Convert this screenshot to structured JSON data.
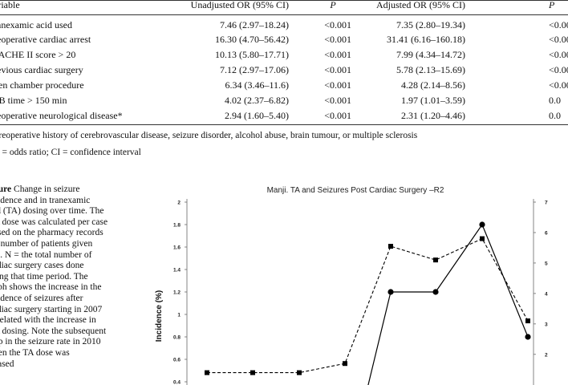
{
  "table": {
    "headers": {
      "variable": "ariable",
      "unadjusted": "Unadjusted OR (95% CI)",
      "p1": "P",
      "adjusted": "Adjusted OR (95% CI)",
      "p2": "P"
    },
    "rows": [
      {
        "variable": "ranexamic acid used",
        "unadjusted": "7.46 (2.97–18.24)",
        "p1": "<0.001",
        "adjusted": "7.35 (2.80–19.34)",
        "p2": "<0.00"
      },
      {
        "variable": "reoperative cardiac arrest",
        "unadjusted": "16.30 (4.70–56.42)",
        "p1": "<0.001",
        "adjusted": "31.41 (6.16–160.18)",
        "p2": "<0.00"
      },
      {
        "variable": "PACHE II score > 20",
        "unadjusted": "10.13 (5.80–17.71)",
        "p1": "<0.001",
        "adjusted": "7.99 (4.34–14.72)",
        "p2": "<0.00"
      },
      {
        "variable": "revious cardiac surgery",
        "unadjusted": "7.12 (2.97–17.06)",
        "p1": "<0.001",
        "adjusted": "5.78 (2.13–15.69)",
        "p2": "<0.00"
      },
      {
        "variable": "pen chamber procedure",
        "unadjusted": "6.34 (3.46–11.6)",
        "p1": "<0.001",
        "adjusted": "4.28 (2.14–8.56)",
        "p2": "<0.00"
      },
      {
        "variable": "PB time > 150 min",
        "unadjusted": "4.02 (2.37–6.82)",
        "p1": "<0.001",
        "adjusted": "1.97 (1.01–3.59)",
        "p2": "0.0"
      },
      {
        "variable": "reoperative neurological disease*",
        "unadjusted": "2.94 (1.60–5.40)",
        "p1": "<0.001",
        "adjusted": "2.31 (1.20–4.46)",
        "p2": "0.0"
      }
    ],
    "footnotes": [
      "Preoperative history of cerebrovascular disease, seizure disorder, alcohol abuse, brain tumour, or multiple sclerosis",
      "R = odds ratio; CI = confidence interval"
    ]
  },
  "caption": {
    "lines": [
      "gure  Change in seizure",
      "cidence and in tranexamic",
      "id (TA) dosing over time. The",
      "A dose was calculated per case",
      "ased on the pharmacy records",
      "d number of patients given",
      "A. N = the total number of",
      "rdiac surgery cases done",
      "ring that time period. The",
      "aph shows the increase in the",
      "cidence of seizures after",
      "rdiac surgery starting in 2007",
      "rrelated with the increase in",
      "A dosing. Note the subsequent",
      "op in the seizure rate in 2010",
      "hen the TA dose was",
      "eased"
    ]
  },
  "chart_data": {
    "type": "line",
    "title": "Manji. TA and Seizures Post Cardiac Surgery –R2",
    "ylabel": "Incidence (%)",
    "ylim": [
      0.4,
      2
    ],
    "yticks": [
      "2",
      "1.8",
      "1.6",
      "1.4",
      "1.2",
      "1",
      "0.8",
      "0.6",
      "0.4"
    ],
    "y2lim": [
      1.1,
      7
    ],
    "y2ticks": [
      "7",
      "6",
      "5",
      "4",
      "3",
      "2"
    ],
    "grid": false,
    "x": [
      1,
      2,
      3,
      4,
      5,
      6,
      7,
      8
    ],
    "series": [
      {
        "values": [
          null,
          null,
          null,
          null,
          1.2,
          1.2,
          1.8,
          0.8
        ],
        "axis": "left",
        "style": "solid",
        "marker": "circle"
      },
      {
        "values": [
          1.4,
          1.4,
          1.4,
          1.7,
          5.55,
          5.1,
          5.8,
          3.1
        ],
        "axis": "right",
        "style": "dashed",
        "marker": "square"
      }
    ],
    "colors": {
      "line": "#000000"
    }
  }
}
